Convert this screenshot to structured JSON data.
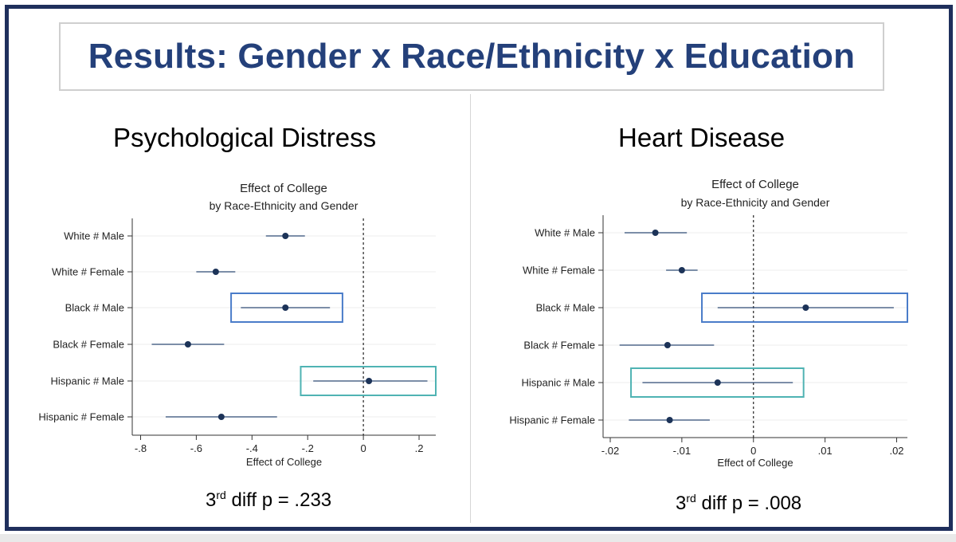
{
  "slide": {
    "title": "Results: Gender x Race/Ethnicity x Education"
  },
  "panels": [
    {
      "heading": "Psychological Distress",
      "pvalue": {
        "prefix": "3",
        "sup": "rd",
        "text": "diff p = .233"
      }
    },
    {
      "heading": "Heart Disease",
      "pvalue": {
        "prefix": "3",
        "sup": "rd",
        "text": "diff p = .008"
      }
    }
  ],
  "chart_data": [
    {
      "type": "scatter",
      "title": "Effect of College",
      "subtitle": "by Race-Ethnicity and Gender",
      "xlabel": "Effect of College",
      "ylabel": "",
      "xlim": [
        -0.83,
        0.26
      ],
      "xticks": [
        -0.8,
        -0.6,
        -0.4,
        -0.2,
        0,
        0.2
      ],
      "xtick_labels": [
        "-.8",
        "-.6",
        "-.4",
        "-.2",
        "0",
        ".2"
      ],
      "reference_line": 0,
      "grid": true,
      "categories": [
        "White # Male",
        "White # Female",
        "Black # Male",
        "Black # Female",
        "Hispanic # Male",
        "Hispanic # Female"
      ],
      "estimates": [
        -0.28,
        -0.53,
        -0.28,
        -0.63,
        0.02,
        -0.51
      ],
      "ci_low": [
        -0.35,
        -0.6,
        -0.44,
        -0.76,
        -0.18,
        -0.71
      ],
      "ci_high": [
        -0.21,
        -0.46,
        -0.12,
        -0.5,
        0.23,
        -0.31
      ],
      "highlights": [
        {
          "category": "Black # Male",
          "x_range": [
            -0.475,
            -0.075
          ],
          "color": "#4a7cc9"
        },
        {
          "category": "Hispanic # Male",
          "x_range": [
            -0.225,
            0.26
          ],
          "color": "#4fb3b3"
        }
      ]
    },
    {
      "type": "scatter",
      "title": "Effect of College",
      "subtitle": "by Race-Ethnicity and Gender",
      "xlabel": "Effect of College",
      "ylabel": "",
      "xlim": [
        -0.021,
        0.0215
      ],
      "xticks": [
        -0.02,
        -0.01,
        0,
        0.01,
        0.02
      ],
      "xtick_labels": [
        "-.02",
        "-.01",
        "0",
        ".01",
        ".02"
      ],
      "reference_line": 0,
      "grid": true,
      "categories": [
        "White # Male",
        "White # Female",
        "Black # Male",
        "Black # Female",
        "Hispanic # Male",
        "Hispanic # Female"
      ],
      "estimates": [
        -0.0137,
        -0.01,
        0.0073,
        -0.012,
        -0.005,
        -0.0117
      ],
      "ci_low": [
        -0.018,
        -0.0122,
        -0.005,
        -0.0187,
        -0.0155,
        -0.0174
      ],
      "ci_high": [
        -0.0093,
        -0.0078,
        0.0196,
        -0.0055,
        0.0055,
        -0.0061
      ],
      "highlights": [
        {
          "category": "Black # Male",
          "x_range": [
            -0.0072,
            0.0215
          ],
          "color": "#4a7cc9"
        },
        {
          "category": "Hispanic # Male",
          "x_range": [
            -0.0171,
            0.007
          ],
          "color": "#4fb3b3"
        }
      ]
    }
  ],
  "colors": {
    "frame": "#1f2f5c",
    "title": "#24407a",
    "marker": "#1c3358",
    "ci_line": "#2e4a75"
  }
}
